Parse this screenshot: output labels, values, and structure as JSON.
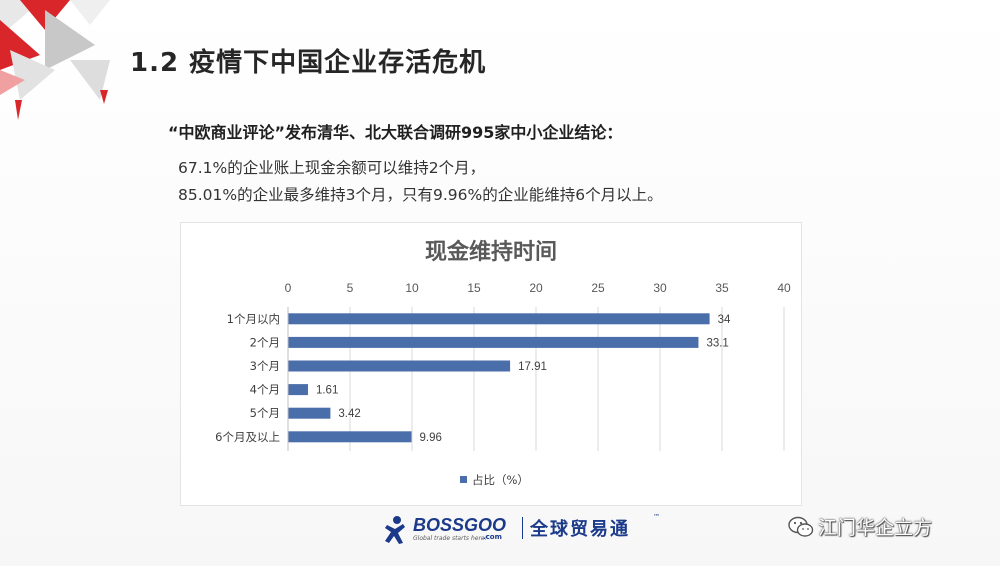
{
  "slide": {
    "title": "1.2 疫情下中国企业存活危机",
    "subtitle": "“中欧商业评论”发布清华、北大联合调研995家中小企业结论：",
    "line1": "67.1%的企业账上现金余额可以维持2个月，",
    "line2": "85.01%的企业最多维持3个月，只有9.96%的企业能维持6个月以上。"
  },
  "chart_data": {
    "type": "bar",
    "orientation": "horizontal",
    "title": "现金维持时间",
    "categories": [
      "1个月以内",
      "2个月",
      "3个月",
      "4个月",
      "5个月",
      "6个月及以上"
    ],
    "series": [
      {
        "name": "占比（%）",
        "values": [
          34,
          33.1,
          17.91,
          1.61,
          3.42,
          9.96
        ],
        "color": "#4a6eaa"
      }
    ],
    "data_labels": [
      "34",
      "33.1",
      "17.91",
      "1.61",
      "3.42",
      "9.96"
    ],
    "x_ticks": [
      "0",
      "5",
      "10",
      "15",
      "20",
      "25",
      "30",
      "35",
      "40"
    ],
    "xlim": [
      0,
      40
    ],
    "x_axis_position": "top",
    "grid": true,
    "legend_position": "bottom"
  },
  "footer": {
    "logo_word": "BOSSGOO",
    "logo_tagline": "Global trade starts here!",
    "logo_domain": ".com",
    "logo_cn": "全球贸易通",
    "logo_tm": "™",
    "watermark": "江门华企立方"
  },
  "colors": {
    "bar": "#4a6eaa",
    "title_text": "#262626",
    "decor_red": "#d9262b",
    "brand_blue": "#1b3a8a"
  }
}
